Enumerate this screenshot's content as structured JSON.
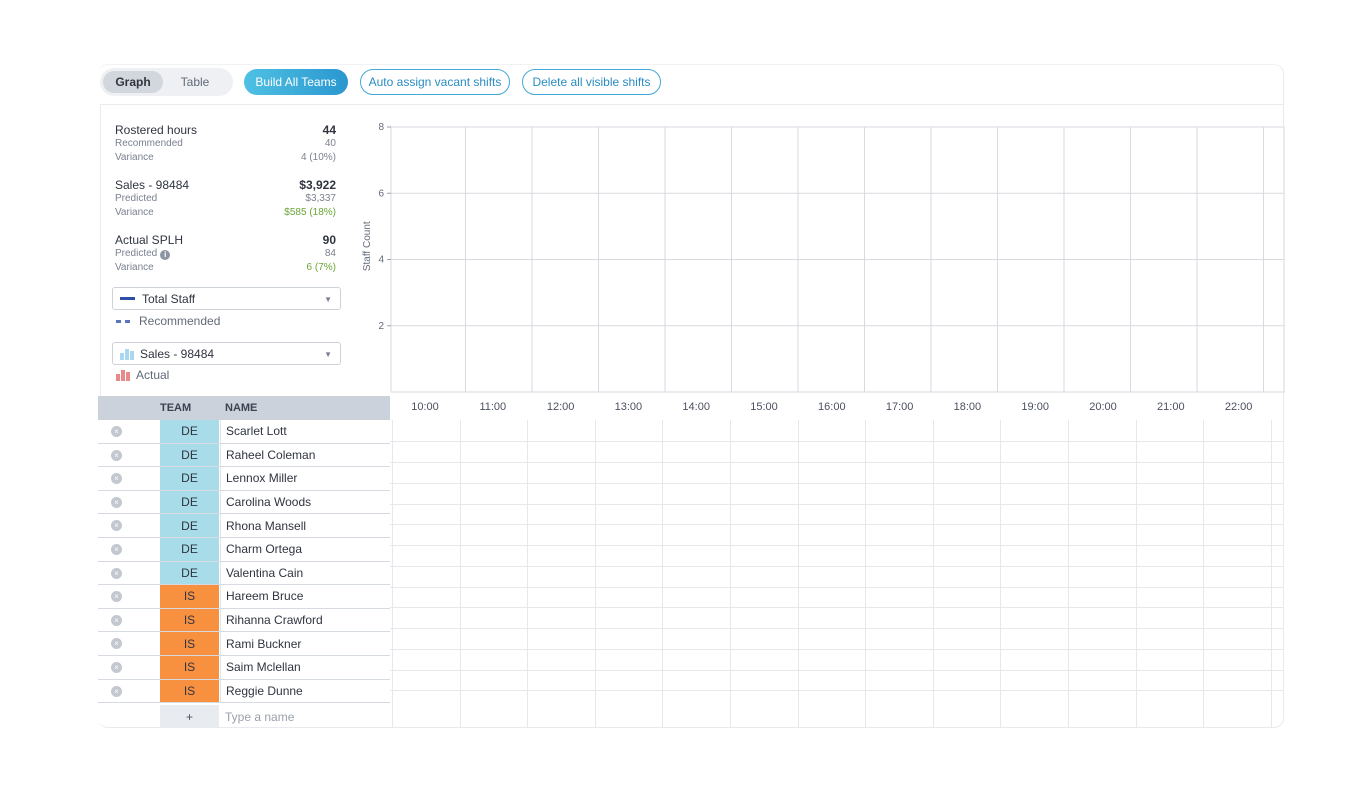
{
  "toolbar": {
    "view_tabs": [
      {
        "label": "Graph",
        "active": true
      },
      {
        "label": "Table",
        "active": false
      }
    ],
    "build_label": "Build All Teams",
    "auto_assign_label": "Auto assign vacant shifts",
    "delete_label": "Delete all visible shifts"
  },
  "metrics": {
    "rostered": {
      "title": "Rostered hours",
      "value": "44",
      "sub1_label": "Recommended",
      "sub1_value": "40",
      "sub2_label": "Variance",
      "sub2_value": "4 (10%)"
    },
    "sales": {
      "title": "Sales - 98484",
      "value": "$3,922",
      "sub1_label": "Predicted",
      "sub1_value": "$3,337",
      "sub2_label": "Variance",
      "sub2_value": "$585 (18%)"
    },
    "splh": {
      "title": "Actual SPLH",
      "value": "90",
      "sub1_label": "Predicted",
      "sub1_value": "84",
      "sub2_label": "Variance",
      "sub2_value": "6 (7%)"
    }
  },
  "selectors": {
    "staff_select": "Total Staff",
    "staff_legend": "Recommended",
    "sales_select": "Sales - 98484",
    "sales_legend": "Actual"
  },
  "colors": {
    "team_de": "#a8dce8",
    "team_is": "#f7913f",
    "total_staff_line": "#2e4fa8",
    "recommended_dash": "#5a74c0",
    "sales_bar": "#a9d7f0",
    "actual_bar": "#e98a8a"
  },
  "chart_data": {
    "type": "bar",
    "ylabel": "Staff Count",
    "yticks": [
      2,
      4,
      6,
      8
    ],
    "ylim": [
      0,
      8
    ],
    "x": [
      "10:00",
      "11:00",
      "12:00",
      "13:00",
      "14:00",
      "15:00",
      "16:00",
      "17:00",
      "18:00",
      "19:00",
      "20:00",
      "21:00",
      "22:00"
    ],
    "grid": true,
    "series": []
  },
  "table": {
    "headers": {
      "team": "TEAM",
      "name": "NAME"
    },
    "rows": [
      {
        "team": "DE",
        "name": "Scarlet Lott"
      },
      {
        "team": "DE",
        "name": "Raheel Coleman"
      },
      {
        "team": "DE",
        "name": "Lennox Miller"
      },
      {
        "team": "DE",
        "name": "Carolina Woods"
      },
      {
        "team": "DE",
        "name": "Rhona Mansell"
      },
      {
        "team": "DE",
        "name": "Charm Ortega"
      },
      {
        "team": "DE",
        "name": "Valentina Cain"
      },
      {
        "team": "IS",
        "name": "Hareem Bruce"
      },
      {
        "team": "IS",
        "name": "Rihanna Crawford"
      },
      {
        "team": "IS",
        "name": "Rami Buckner"
      },
      {
        "team": "IS",
        "name": "Saim Mclellan"
      },
      {
        "team": "IS",
        "name": "Reggie Dunne"
      }
    ],
    "add_symbol": "+",
    "name_placeholder": "Type a name"
  },
  "icons": {
    "remove": "x-circle-icon",
    "caret": "chevron-down-icon",
    "info": "info-icon"
  }
}
